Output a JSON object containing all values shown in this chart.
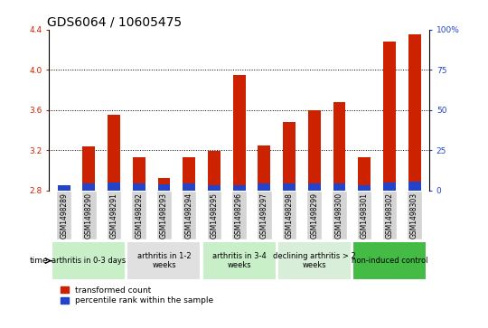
{
  "title": "GDS6064 / 10605475",
  "samples": [
    "GSM1498289",
    "GSM1498290",
    "GSM1498291",
    "GSM1498292",
    "GSM1498293",
    "GSM1498294",
    "GSM1498295",
    "GSM1498296",
    "GSM1498297",
    "GSM1498298",
    "GSM1498299",
    "GSM1498300",
    "GSM1498301",
    "GSM1498302",
    "GSM1498303"
  ],
  "red_values": [
    2.82,
    3.24,
    3.55,
    3.13,
    2.92,
    3.13,
    3.19,
    3.95,
    3.25,
    3.48,
    3.6,
    3.68,
    3.13,
    4.28,
    4.35
  ],
  "blue_values": [
    2.85,
    2.87,
    2.88,
    2.87,
    2.86,
    2.87,
    2.85,
    2.85,
    2.87,
    2.87,
    2.87,
    2.87,
    2.85,
    2.88,
    2.89
  ],
  "ymin": 2.8,
  "ymax": 4.4,
  "yticks_left": [
    2.8,
    3.2,
    3.6,
    4.0,
    4.4
  ],
  "right_yticks": [
    0,
    25,
    50,
    75,
    100
  ],
  "groups": [
    {
      "label": "arthritis in 0-3 days",
      "start": 0,
      "end": 2,
      "color": "#c8efc8"
    },
    {
      "label": "arthritis in 1-2\nweeks",
      "start": 3,
      "end": 5,
      "color": "#e0e0e0"
    },
    {
      "label": "arthritis in 3-4\nweeks",
      "start": 6,
      "end": 8,
      "color": "#c8efc8"
    },
    {
      "label": "declining arthritis > 2\nweeks",
      "start": 9,
      "end": 11,
      "color": "#d8eed8"
    },
    {
      "label": "non-induced control",
      "start": 12,
      "end": 14,
      "color": "#44bb44"
    }
  ],
  "bar_color_red": "#cc2200",
  "bar_color_blue": "#2244cc",
  "bar_width": 0.5,
  "title_fontsize": 10,
  "tick_fontsize": 6.5,
  "xtick_fontsize": 5.5
}
